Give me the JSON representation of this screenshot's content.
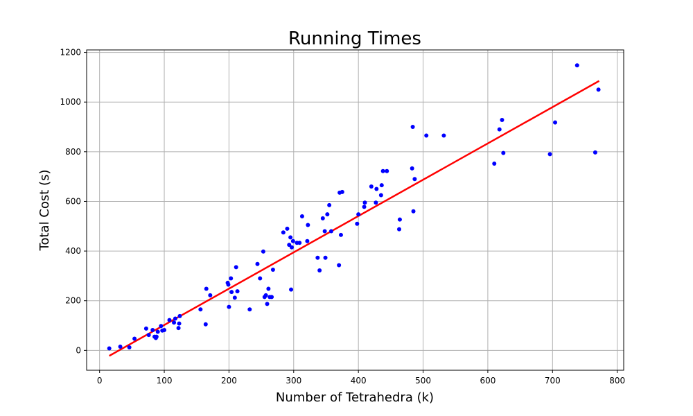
{
  "chart_data": {
    "type": "scatter",
    "title": "Running Times",
    "xlabel": "Number of Tetrahedra (k)",
    "ylabel": "Total Cost (s)",
    "xlim": [
      -20,
      810
    ],
    "ylim": [
      -80,
      1210
    ],
    "xticks": [
      0,
      100,
      200,
      300,
      400,
      500,
      600,
      700,
      800
    ],
    "yticks": [
      0,
      200,
      400,
      600,
      800,
      1000,
      1200
    ],
    "grid": true,
    "point_color": "#0000ff",
    "fit_color": "#ff0000",
    "fit_line": {
      "x": [
        15,
        772
      ],
      "y": [
        -22,
        1085
      ]
    },
    "points": [
      [
        15,
        8
      ],
      [
        32,
        15
      ],
      [
        46,
        12
      ],
      [
        54,
        47
      ],
      [
        72,
        88
      ],
      [
        76,
        62
      ],
      [
        82,
        82
      ],
      [
        85,
        55
      ],
      [
        87,
        50
      ],
      [
        88,
        55
      ],
      [
        90,
        75
      ],
      [
        95,
        98
      ],
      [
        97,
        80
      ],
      [
        100,
        82
      ],
      [
        108,
        122
      ],
      [
        115,
        112
      ],
      [
        117,
        128
      ],
      [
        122,
        90
      ],
      [
        123,
        108
      ],
      [
        124,
        138
      ],
      [
        156,
        165
      ],
      [
        164,
        105
      ],
      [
        165,
        248
      ],
      [
        171,
        222
      ],
      [
        198,
        272
      ],
      [
        199,
        265
      ],
      [
        200,
        175
      ],
      [
        203,
        290
      ],
      [
        204,
        235
      ],
      [
        209,
        212
      ],
      [
        211,
        335
      ],
      [
        213,
        238
      ],
      [
        232,
        165
      ],
      [
        244,
        348
      ],
      [
        248,
        290
      ],
      [
        253,
        398
      ],
      [
        255,
        215
      ],
      [
        257,
        222
      ],
      [
        259,
        187
      ],
      [
        261,
        248
      ],
      [
        263,
        215
      ],
      [
        266,
        215
      ],
      [
        268,
        325
      ],
      [
        284,
        475
      ],
      [
        290,
        490
      ],
      [
        293,
        425
      ],
      [
        295,
        455
      ],
      [
        296,
        245
      ],
      [
        297,
        415
      ],
      [
        299,
        440
      ],
      [
        305,
        433
      ],
      [
        309,
        433
      ],
      [
        313,
        540
      ],
      [
        321,
        440
      ],
      [
        322,
        505
      ],
      [
        337,
        373
      ],
      [
        340,
        322
      ],
      [
        345,
        532
      ],
      [
        348,
        480
      ],
      [
        349,
        373
      ],
      [
        352,
        548
      ],
      [
        355,
        585
      ],
      [
        358,
        480
      ],
      [
        370,
        343
      ],
      [
        371,
        635
      ],
      [
        373,
        465
      ],
      [
        375,
        638
      ],
      [
        398,
        510
      ],
      [
        400,
        548
      ],
      [
        409,
        578
      ],
      [
        410,
        595
      ],
      [
        420,
        660
      ],
      [
        427,
        595
      ],
      [
        428,
        650
      ],
      [
        435,
        625
      ],
      [
        436,
        665
      ],
      [
        438,
        722
      ],
      [
        444,
        722
      ],
      [
        463,
        488
      ],
      [
        464,
        527
      ],
      [
        483,
        733
      ],
      [
        484,
        900
      ],
      [
        485,
        560
      ],
      [
        487,
        690
      ],
      [
        505,
        865
      ],
      [
        532,
        865
      ],
      [
        610,
        752
      ],
      [
        618,
        890
      ],
      [
        622,
        928
      ],
      [
        624,
        795
      ],
      [
        696,
        790
      ],
      [
        704,
        918
      ],
      [
        738,
        1148
      ],
      [
        766,
        797
      ],
      [
        771,
        1050
      ]
    ]
  }
}
